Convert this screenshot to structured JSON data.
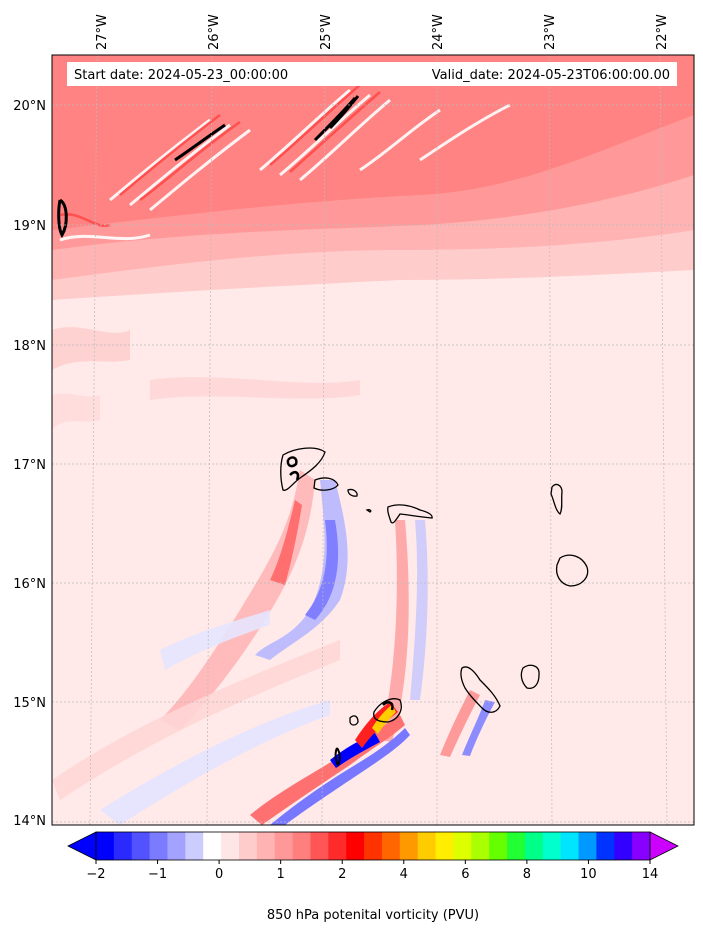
{
  "header": {
    "start_date": "Start date: 2024-05-23_00:00:00",
    "valid_date": "Valid_date: 2024-05-23T06:00:00.00"
  },
  "axes": {
    "lon_labels": [
      "27°W",
      "26°W",
      "25°W",
      "24°W",
      "23°W",
      "22°W"
    ],
    "lat_labels": [
      "20°N",
      "19°N",
      "18°N",
      "17°N",
      "16°N",
      "15°N",
      "14°N"
    ]
  },
  "colorbar": {
    "label": "850 hPa potenital vorticity (PVU)",
    "tick_labels": [
      "−2",
      "−1",
      "0",
      "1",
      "2",
      "4",
      "6",
      "8",
      "10",
      "14"
    ],
    "colors": [
      "#0000ff",
      "#2a2aff",
      "#5252ff",
      "#7b7bff",
      "#a3a3ff",
      "#ccccff",
      "#ffffff",
      "#ffe6e6",
      "#ffcccc",
      "#ffb3b3",
      "#ff9999",
      "#ff7f7f",
      "#ff5555",
      "#ff2a2a",
      "#ff0000",
      "#ff3300",
      "#ff6600",
      "#ff9900",
      "#ffcc00",
      "#ffee00",
      "#ddff00",
      "#aaff00",
      "#66ff00",
      "#22ff33",
      "#00ff88",
      "#00ffcc",
      "#00e5ff",
      "#0099ff",
      "#0033ff",
      "#3300ff",
      "#8800ff"
    ],
    "extend_low_color": "#0000ff",
    "extend_high_color": "#cc00ff"
  },
  "style": {
    "background_pale": "#ffe9e9",
    "coastline": "#000000",
    "grid": "#bbbbbb"
  }
}
